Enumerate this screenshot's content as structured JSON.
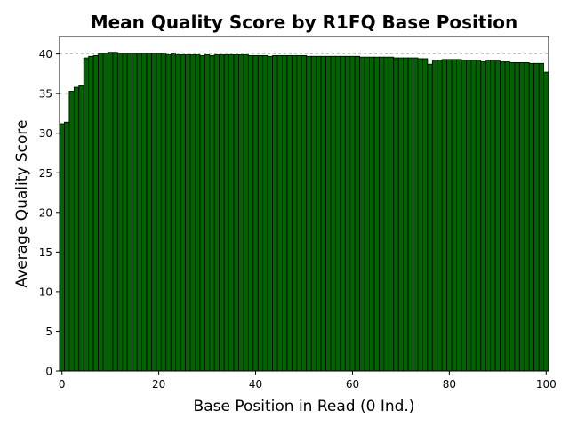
{
  "chart_data": {
    "type": "bar",
    "title": "Mean Quality Score by R1FQ Base Position",
    "xlabel": "Base Position in Read (0 Ind.)",
    "ylabel": "Average Quality Score",
    "xlim": [
      -0.5,
      100.5
    ],
    "ylim": [
      0,
      42.2
    ],
    "xticks": [
      0,
      20,
      40,
      60,
      80,
      100
    ],
    "yticks": [
      0,
      5,
      10,
      15,
      20,
      25,
      30,
      35,
      40
    ],
    "grid": "y-dashed",
    "bar_color": "#006400",
    "edge_color": "#000000",
    "x": [
      0,
      1,
      2,
      3,
      4,
      5,
      6,
      7,
      8,
      9,
      10,
      11,
      12,
      13,
      14,
      15,
      16,
      17,
      18,
      19,
      20,
      21,
      22,
      23,
      24,
      25,
      26,
      27,
      28,
      29,
      30,
      31,
      32,
      33,
      34,
      35,
      36,
      37,
      38,
      39,
      40,
      41,
      42,
      43,
      44,
      45,
      46,
      47,
      48,
      49,
      50,
      51,
      52,
      53,
      54,
      55,
      56,
      57,
      58,
      59,
      60,
      61,
      62,
      63,
      64,
      65,
      66,
      67,
      68,
      69,
      70,
      71,
      72,
      73,
      74,
      75,
      76,
      77,
      78,
      79,
      80,
      81,
      82,
      83,
      84,
      85,
      86,
      87,
      88,
      89,
      90,
      91,
      92,
      93,
      94,
      95,
      96,
      97,
      98,
      99,
      100
    ],
    "values": [
      31.2,
      31.4,
      35.3,
      35.8,
      36.0,
      39.5,
      39.7,
      39.8,
      40.0,
      40.0,
      40.1,
      40.1,
      40.0,
      40.0,
      40.0,
      40.0,
      40.0,
      40.0,
      40.0,
      40.0,
      40.0,
      40.0,
      39.9,
      40.0,
      39.9,
      39.9,
      39.9,
      39.9,
      39.9,
      39.8,
      39.9,
      39.8,
      39.9,
      39.9,
      39.9,
      39.9,
      39.9,
      39.9,
      39.9,
      39.8,
      39.8,
      39.8,
      39.8,
      39.7,
      39.8,
      39.8,
      39.8,
      39.8,
      39.8,
      39.8,
      39.8,
      39.7,
      39.7,
      39.7,
      39.7,
      39.7,
      39.7,
      39.7,
      39.7,
      39.7,
      39.7,
      39.7,
      39.6,
      39.6,
      39.6,
      39.6,
      39.6,
      39.6,
      39.6,
      39.5,
      39.5,
      39.5,
      39.5,
      39.5,
      39.4,
      39.4,
      38.7,
      39.1,
      39.2,
      39.3,
      39.3,
      39.3,
      39.3,
      39.2,
      39.2,
      39.2,
      39.2,
      39.0,
      39.1,
      39.1,
      39.1,
      39.0,
      39.0,
      38.9,
      38.9,
      38.9,
      38.9,
      38.8,
      38.8,
      38.8,
      37.7
    ]
  }
}
